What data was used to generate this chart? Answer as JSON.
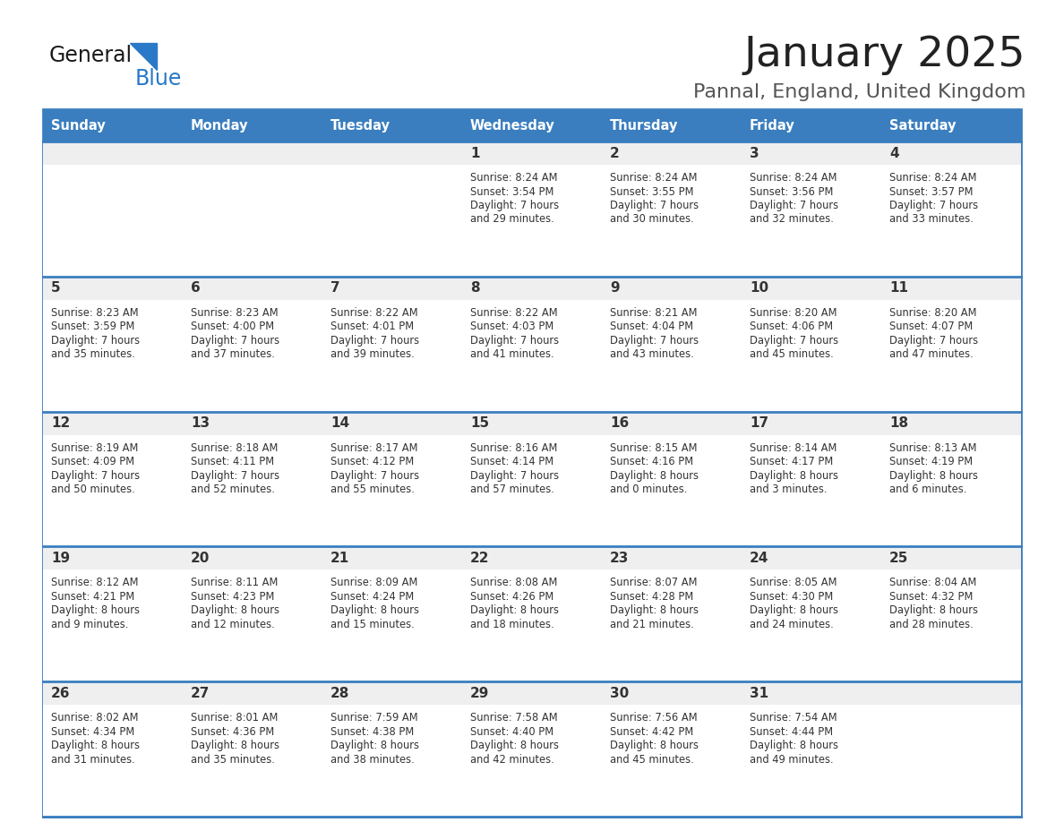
{
  "title": "January 2025",
  "subtitle": "Pannal, England, United Kingdom",
  "days_of_week": [
    "Sunday",
    "Monday",
    "Tuesday",
    "Wednesday",
    "Thursday",
    "Friday",
    "Saturday"
  ],
  "header_bg": "#3a7ebf",
  "header_text_color": "#ffffff",
  "cell_bg_top": "#efefef",
  "cell_bg_main": "#ffffff",
  "row_sep_color": "#3a7ebf",
  "text_color": "#333333",
  "title_color": "#222222",
  "subtitle_color": "#555555",
  "logo_general_color": "#1a1a1a",
  "logo_blue_color": "#2979c8",
  "calendar_data": [
    [
      {
        "day": null,
        "info": null
      },
      {
        "day": null,
        "info": null
      },
      {
        "day": null,
        "info": null
      },
      {
        "day": "1",
        "info": "Sunrise: 8:24 AM\nSunset: 3:54 PM\nDaylight: 7 hours\nand 29 minutes."
      },
      {
        "day": "2",
        "info": "Sunrise: 8:24 AM\nSunset: 3:55 PM\nDaylight: 7 hours\nand 30 minutes."
      },
      {
        "day": "3",
        "info": "Sunrise: 8:24 AM\nSunset: 3:56 PM\nDaylight: 7 hours\nand 32 minutes."
      },
      {
        "day": "4",
        "info": "Sunrise: 8:24 AM\nSunset: 3:57 PM\nDaylight: 7 hours\nand 33 minutes."
      }
    ],
    [
      {
        "day": "5",
        "info": "Sunrise: 8:23 AM\nSunset: 3:59 PM\nDaylight: 7 hours\nand 35 minutes."
      },
      {
        "day": "6",
        "info": "Sunrise: 8:23 AM\nSunset: 4:00 PM\nDaylight: 7 hours\nand 37 minutes."
      },
      {
        "day": "7",
        "info": "Sunrise: 8:22 AM\nSunset: 4:01 PM\nDaylight: 7 hours\nand 39 minutes."
      },
      {
        "day": "8",
        "info": "Sunrise: 8:22 AM\nSunset: 4:03 PM\nDaylight: 7 hours\nand 41 minutes."
      },
      {
        "day": "9",
        "info": "Sunrise: 8:21 AM\nSunset: 4:04 PM\nDaylight: 7 hours\nand 43 minutes."
      },
      {
        "day": "10",
        "info": "Sunrise: 8:20 AM\nSunset: 4:06 PM\nDaylight: 7 hours\nand 45 minutes."
      },
      {
        "day": "11",
        "info": "Sunrise: 8:20 AM\nSunset: 4:07 PM\nDaylight: 7 hours\nand 47 minutes."
      }
    ],
    [
      {
        "day": "12",
        "info": "Sunrise: 8:19 AM\nSunset: 4:09 PM\nDaylight: 7 hours\nand 50 minutes."
      },
      {
        "day": "13",
        "info": "Sunrise: 8:18 AM\nSunset: 4:11 PM\nDaylight: 7 hours\nand 52 minutes."
      },
      {
        "day": "14",
        "info": "Sunrise: 8:17 AM\nSunset: 4:12 PM\nDaylight: 7 hours\nand 55 minutes."
      },
      {
        "day": "15",
        "info": "Sunrise: 8:16 AM\nSunset: 4:14 PM\nDaylight: 7 hours\nand 57 minutes."
      },
      {
        "day": "16",
        "info": "Sunrise: 8:15 AM\nSunset: 4:16 PM\nDaylight: 8 hours\nand 0 minutes."
      },
      {
        "day": "17",
        "info": "Sunrise: 8:14 AM\nSunset: 4:17 PM\nDaylight: 8 hours\nand 3 minutes."
      },
      {
        "day": "18",
        "info": "Sunrise: 8:13 AM\nSunset: 4:19 PM\nDaylight: 8 hours\nand 6 minutes."
      }
    ],
    [
      {
        "day": "19",
        "info": "Sunrise: 8:12 AM\nSunset: 4:21 PM\nDaylight: 8 hours\nand 9 minutes."
      },
      {
        "day": "20",
        "info": "Sunrise: 8:11 AM\nSunset: 4:23 PM\nDaylight: 8 hours\nand 12 minutes."
      },
      {
        "day": "21",
        "info": "Sunrise: 8:09 AM\nSunset: 4:24 PM\nDaylight: 8 hours\nand 15 minutes."
      },
      {
        "day": "22",
        "info": "Sunrise: 8:08 AM\nSunset: 4:26 PM\nDaylight: 8 hours\nand 18 minutes."
      },
      {
        "day": "23",
        "info": "Sunrise: 8:07 AM\nSunset: 4:28 PM\nDaylight: 8 hours\nand 21 minutes."
      },
      {
        "day": "24",
        "info": "Sunrise: 8:05 AM\nSunset: 4:30 PM\nDaylight: 8 hours\nand 24 minutes."
      },
      {
        "day": "25",
        "info": "Sunrise: 8:04 AM\nSunset: 4:32 PM\nDaylight: 8 hours\nand 28 minutes."
      }
    ],
    [
      {
        "day": "26",
        "info": "Sunrise: 8:02 AM\nSunset: 4:34 PM\nDaylight: 8 hours\nand 31 minutes."
      },
      {
        "day": "27",
        "info": "Sunrise: 8:01 AM\nSunset: 4:36 PM\nDaylight: 8 hours\nand 35 minutes."
      },
      {
        "day": "28",
        "info": "Sunrise: 7:59 AM\nSunset: 4:38 PM\nDaylight: 8 hours\nand 38 minutes."
      },
      {
        "day": "29",
        "info": "Sunrise: 7:58 AM\nSunset: 4:40 PM\nDaylight: 8 hours\nand 42 minutes."
      },
      {
        "day": "30",
        "info": "Sunrise: 7:56 AM\nSunset: 4:42 PM\nDaylight: 8 hours\nand 45 minutes."
      },
      {
        "day": "31",
        "info": "Sunrise: 7:54 AM\nSunset: 4:44 PM\nDaylight: 8 hours\nand 49 minutes."
      },
      {
        "day": null,
        "info": null
      }
    ]
  ]
}
